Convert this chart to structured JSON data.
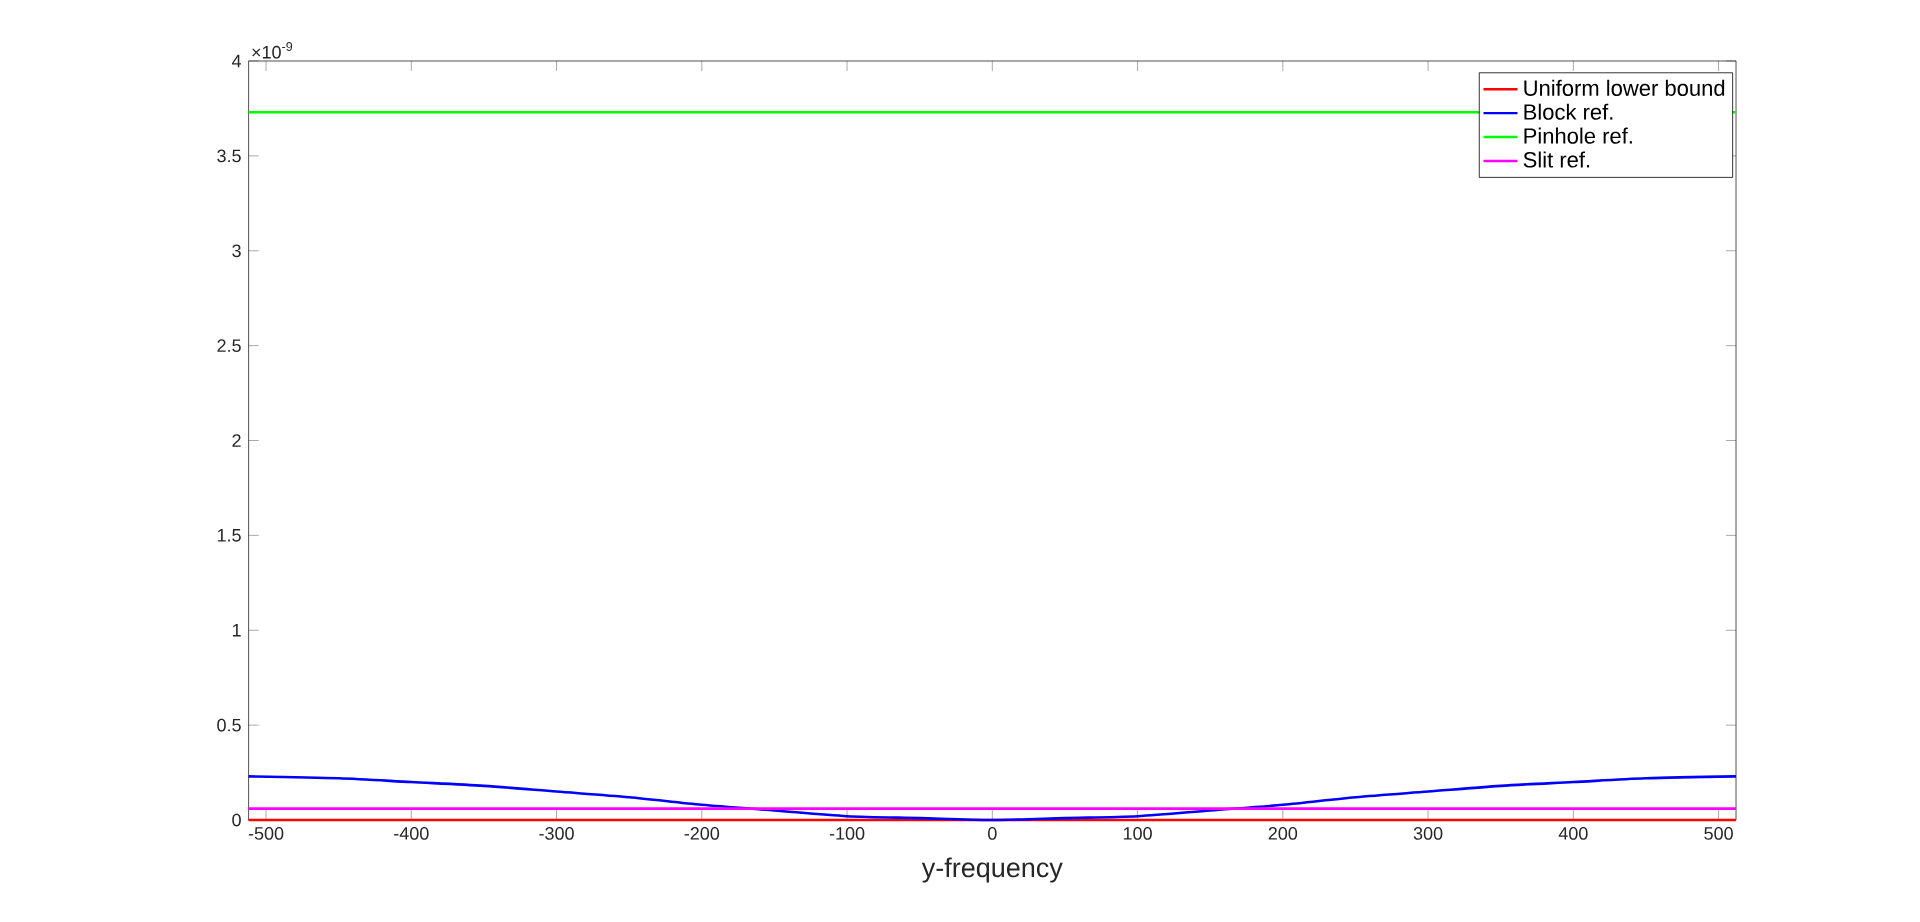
{
  "chart_data": {
    "type": "line",
    "xlabel": "y-frequency",
    "annotations": [
      "×10$^{-9}$"
    ],
    "xlim": [
      -512,
      512
    ],
    "ylim": [
      0,
      4
    ],
    "xticks": [
      -500,
      -400,
      -300,
      -200,
      -100,
      0,
      100,
      200,
      300,
      400,
      500
    ],
    "yticks": [
      0,
      0.5,
      1,
      1.5,
      2,
      2.5,
      3,
      3.5,
      4
    ],
    "legend": "top right",
    "series": [
      {
        "name": "Uniform lower bound",
        "color": "#ff0000",
        "x": [
          -512,
          512
        ],
        "values": [
          0,
          0
        ]
      },
      {
        "name": "Block ref.",
        "color": "#0000ff",
        "x": [
          -512,
          -450,
          -400,
          -350,
          -300,
          -250,
          -200,
          -150,
          -100,
          -50,
          0,
          50,
          100,
          150,
          200,
          250,
          300,
          350,
          400,
          450,
          512
        ],
        "values": [
          0.23,
          0.22,
          0.2,
          0.18,
          0.15,
          0.12,
          0.08,
          0.05,
          0.02,
          0.01,
          0,
          0.01,
          0.02,
          0.05,
          0.08,
          0.12,
          0.15,
          0.18,
          0.2,
          0.22,
          0.23
        ]
      },
      {
        "name": "Pinhole ref.",
        "color": "#00ff00",
        "x": [
          -512,
          512
        ],
        "values": [
          3.73,
          3.73
        ]
      },
      {
        "name": "Slit ref.",
        "color": "#ff00ff",
        "x": [
          -512,
          512
        ],
        "values": [
          0.06,
          0.06
        ]
      }
    ]
  }
}
